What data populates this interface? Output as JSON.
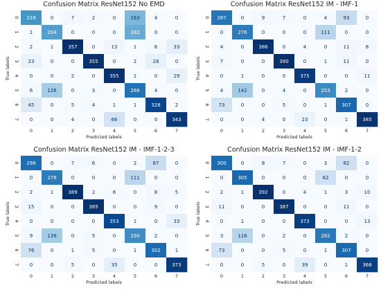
{
  "chart_data": [
    {
      "type": "heatmap",
      "title": "Confusion Matrix ResNet152 No EMD",
      "xlabel": "Predicted labels",
      "ylabel": "True labels",
      "x_tick_labels": [
        "0",
        "1",
        "2",
        "3",
        "4",
        "5",
        "6",
        "7"
      ],
      "y_tick_labels": [
        "0",
        "1",
        "2",
        "3",
        "4",
        "5",
        "6",
        "7"
      ],
      "colormap": "Blues",
      "values": [
        [
          219,
          0,
          7,
          2,
          0,
          163,
          4,
          0
        ],
        [
          1,
          204,
          0,
          0,
          0,
          182,
          0,
          0
        ],
        [
          2,
          1,
          357,
          0,
          13,
          1,
          6,
          33
        ],
        [
          23,
          0,
          0,
          355,
          0,
          2,
          28,
          0
        ],
        [
          0,
          0,
          2,
          0,
          355,
          1,
          0,
          29
        ],
        [
          6,
          126,
          0,
          3,
          0,
          266,
          4,
          0
        ],
        [
          45,
          0,
          5,
          4,
          1,
          1,
          328,
          2
        ],
        [
          0,
          0,
          4,
          0,
          66,
          0,
          0,
          343
        ]
      ]
    },
    {
      "type": "heatmap",
      "title": "Confusion Matrix ResNet152 IM - IMF-1",
      "xlabel": "Predicted labels",
      "ylabel": "True labels",
      "x_tick_labels": [
        "0",
        "1",
        "2",
        "3",
        "4",
        "5",
        "6",
        "7"
      ],
      "y_tick_labels": [
        "0",
        "1",
        "2",
        "3",
        "4",
        "5",
        "6",
        "7"
      ],
      "colormap": "Blues",
      "values": [
        [
          287,
          0,
          9,
          7,
          0,
          4,
          93,
          0
        ],
        [
          0,
          276,
          0,
          0,
          0,
          111,
          0,
          0
        ],
        [
          4,
          0,
          386,
          0,
          4,
          0,
          11,
          8
        ],
        [
          7,
          0,
          0,
          390,
          0,
          1,
          11,
          0
        ],
        [
          0,
          1,
          0,
          0,
          375,
          0,
          0,
          11
        ],
        [
          4,
          142,
          0,
          4,
          0,
          253,
          2,
          0
        ],
        [
          73,
          0,
          0,
          5,
          0,
          1,
          307,
          0
        ],
        [
          0,
          0,
          4,
          0,
          23,
          0,
          1,
          385
        ]
      ]
    },
    {
      "type": "heatmap",
      "title": "Confusion Matrix ResNet152 IM - IMF-1-2-3",
      "xlabel": "Predicted labels",
      "ylabel": "True labels",
      "x_tick_labels": [
        "0",
        "1",
        "2",
        "3",
        "4",
        "5",
        "6",
        "7"
      ],
      "y_tick_labels": [
        "0",
        "1",
        "2",
        "3",
        "4",
        "5",
        "6",
        "7"
      ],
      "colormap": "Blues",
      "values": [
        [
          298,
          0,
          7,
          6,
          0,
          2,
          87,
          0
        ],
        [
          0,
          276,
          0,
          0,
          0,
          111,
          0,
          0
        ],
        [
          2,
          1,
          389,
          2,
          6,
          0,
          8,
          5
        ],
        [
          15,
          0,
          0,
          385,
          0,
          0,
          9,
          0
        ],
        [
          0,
          0,
          0,
          0,
          353,
          1,
          0,
          33
        ],
        [
          9,
          139,
          0,
          5,
          0,
          250,
          2,
          0
        ],
        [
          76,
          0,
          1,
          5,
          0,
          1,
          302,
          1
        ],
        [
          0,
          0,
          5,
          0,
          35,
          0,
          0,
          373
        ]
      ]
    },
    {
      "type": "heatmap",
      "title": "Confusion Matrix ResNet152 IM - IMF-1-2",
      "xlabel": "Predicted labels",
      "ylabel": "True labels",
      "x_tick_labels": [
        "0",
        "1",
        "2",
        "3",
        "4",
        "5",
        "6",
        "7"
      ],
      "y_tick_labels": [
        "0",
        "1",
        "2",
        "3",
        "4",
        "5",
        "6",
        "7"
      ],
      "colormap": "Blues",
      "values": [
        [
          300,
          0,
          8,
          7,
          0,
          3,
          82,
          0
        ],
        [
          0,
          305,
          0,
          0,
          0,
          82,
          0,
          0
        ],
        [
          2,
          1,
          392,
          0,
          4,
          1,
          3,
          10
        ],
        [
          11,
          0,
          0,
          387,
          0,
          0,
          11,
          0
        ],
        [
          0,
          1,
          0,
          0,
          373,
          0,
          0,
          13
        ],
        [
          3,
          116,
          0,
          2,
          0,
          282,
          2,
          0
        ],
        [
          73,
          0,
          0,
          5,
          0,
          1,
          307,
          0
        ],
        [
          0,
          0,
          5,
          0,
          39,
          0,
          1,
          368
        ]
      ]
    }
  ]
}
